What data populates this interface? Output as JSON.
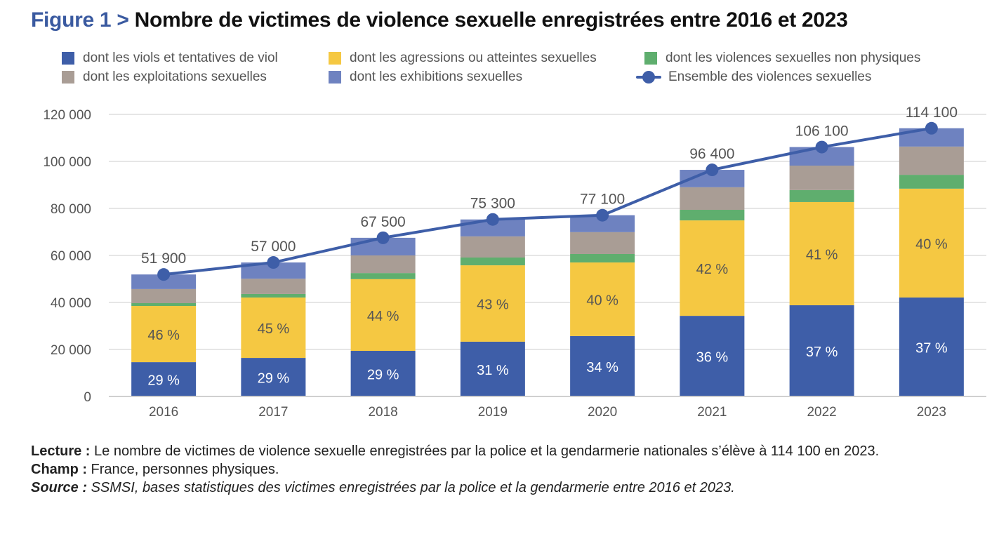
{
  "title": {
    "figure_label": "Figure 1 >",
    "text": "Nombre de victimes de violence sexuelle enregistrées entre 2016 et 2023"
  },
  "colors": {
    "viols": "#3e5ea8",
    "agressions": "#f5c842",
    "non_physiques": "#5fae6e",
    "exploitations": "#a99d95",
    "exhibitions": "#6e82c0",
    "ensemble": "#3e5ea8",
    "grid": "#dddddd",
    "axis_text": "#555555"
  },
  "chart_data": {
    "type": "bar",
    "subtype": "stacked-bar-with-line",
    "title": "Nombre de victimes de violence sexuelle enregistrées entre 2016 et 2023",
    "xlabel": "",
    "ylabel": "",
    "categories": [
      "2016",
      "2017",
      "2018",
      "2019",
      "2020",
      "2021",
      "2022",
      "2023"
    ],
    "ylim": [
      0,
      120000
    ],
    "yticks": [
      0,
      20000,
      40000,
      60000,
      80000,
      100000,
      120000
    ],
    "ytick_labels": [
      "0",
      "20 000",
      "40 000",
      "60 000",
      "80 000",
      "100 000",
      "120 000"
    ],
    "grid": true,
    "legend_position": "top",
    "series": [
      {
        "key": "viols",
        "name": "dont les viols et tentatives de viol",
        "type": "bar",
        "values": [
          14600,
          16400,
          19400,
          23300,
          25700,
          34300,
          38800,
          42100
        ],
        "labels": [
          "29 %",
          "29 %",
          "29 %",
          "31 %",
          "34 %",
          "36 %",
          "37 %",
          "37 %"
        ]
      },
      {
        "key": "agressions",
        "name": "dont les agressions ou atteintes sexuelles",
        "type": "bar",
        "values": [
          23900,
          25700,
          30500,
          32500,
          31300,
          40600,
          43900,
          46300
        ],
        "labels": [
          "46 %",
          "45 %",
          "44 %",
          "43 %",
          "40 %",
          "42 %",
          "41 %",
          "40 %"
        ]
      },
      {
        "key": "non_physiques",
        "name": "dont les violences sexuelles non physiques",
        "type": "bar",
        "values": [
          1200,
          1500,
          2600,
          3300,
          3600,
          4500,
          5100,
          5900
        ]
      },
      {
        "key": "exploitations",
        "name": "dont les exploitations sexuelles",
        "type": "bar",
        "values": [
          6000,
          6500,
          7500,
          9000,
          9300,
          9600,
          10400,
          12000
        ]
      },
      {
        "key": "exhibitions",
        "name": "dont les exhibitions sexuelles",
        "type": "bar",
        "values": [
          6200,
          6900,
          7500,
          7200,
          7200,
          7400,
          7900,
          7800
        ]
      },
      {
        "key": "ensemble",
        "name": "Ensemble des violences sexuelles",
        "type": "line",
        "values": [
          51900,
          57000,
          67500,
          75300,
          77100,
          96400,
          106100,
          114100
        ],
        "labels": [
          "51 900",
          "57 000",
          "67 500",
          "75 300",
          "77 100",
          "96 400",
          "106 100",
          "114 100"
        ]
      }
    ]
  },
  "legend": {
    "row1": [
      {
        "key": "viols",
        "label": "dont les viols et tentatives de viol"
      },
      {
        "key": "agressions",
        "label": "dont les agressions ou atteintes sexuelles"
      },
      {
        "key": "non_physiques",
        "label": "dont les violences sexuelles non physiques"
      }
    ],
    "row2": [
      {
        "key": "exploitations",
        "label": "dont les exploitations sexuelles"
      },
      {
        "key": "exhibitions",
        "label": "dont les exhibitions sexuelles"
      },
      {
        "key": "ensemble",
        "label": "Ensemble des violences sexuelles"
      }
    ]
  },
  "notes": {
    "lecture_label": "Lecture :",
    "lecture_text": " Le nombre de victimes de violence sexuelle enregistrées par la police et la gendarmerie nationales s’élève à 114 100 en 2023.",
    "champ_label": "Champ :",
    "champ_text": " France, personnes physiques.",
    "source_label": "Source :",
    "source_text": " SSMSI, bases statistiques des victimes enregistrées par la police et la gendarmerie entre 2016 et 2023."
  }
}
